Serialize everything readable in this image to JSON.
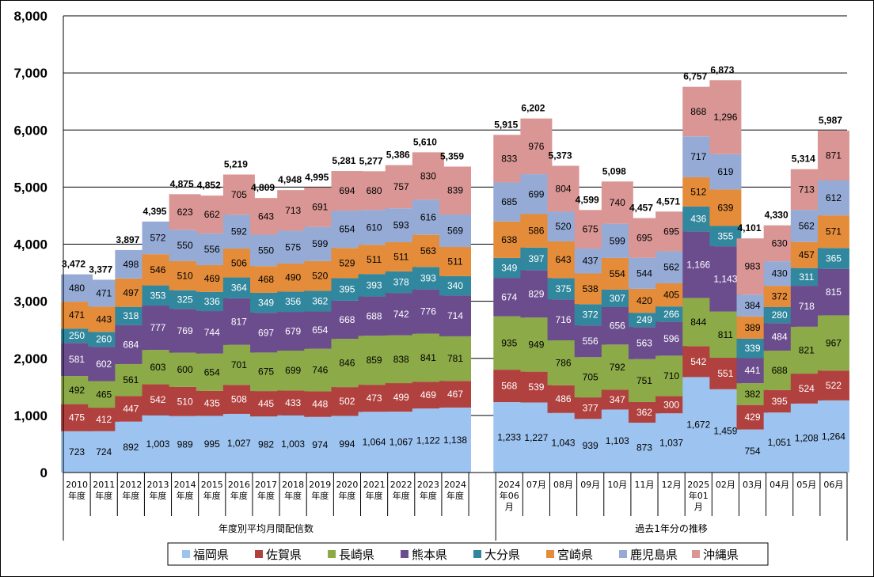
{
  "chart_data": {
    "type": "bar",
    "stacked": true,
    "ylim": [
      0,
      8000
    ],
    "yticks": [
      "0",
      "1,000",
      "2,000",
      "3,000",
      "4,000",
      "5,000",
      "6,000",
      "7,000",
      "8,000"
    ],
    "grid": true,
    "legend_position": "bottom",
    "categories": [
      [
        "2010",
        "年度"
      ],
      [
        "2011",
        "年度"
      ],
      [
        "2012",
        "年度"
      ],
      [
        "2013",
        "年度"
      ],
      [
        "2014",
        "年度"
      ],
      [
        "2015",
        "年度"
      ],
      [
        "2016",
        "年度"
      ],
      [
        "2017",
        "年度"
      ],
      [
        "2018",
        "年度"
      ],
      [
        "2019",
        "年度"
      ],
      [
        "2020",
        "年度"
      ],
      [
        "2021",
        "年度"
      ],
      [
        "2022",
        "年度"
      ],
      [
        "2023",
        "年度"
      ],
      [
        "2024",
        "年度"
      ],
      [
        "2024",
        "年06",
        "月"
      ],
      [
        "07月"
      ],
      [
        "08月"
      ],
      [
        "09月"
      ],
      [
        "10月"
      ],
      [
        "11月"
      ],
      [
        "12月"
      ],
      [
        "2025",
        "年01",
        "月"
      ],
      [
        "02月"
      ],
      [
        "03月"
      ],
      [
        "04月"
      ],
      [
        "05月"
      ],
      [
        "06月"
      ]
    ],
    "groups": [
      {
        "label": "年度別平均月間配信数",
        "count": 15
      },
      {
        "label": "過去1年分の推移",
        "count": 13
      }
    ],
    "series": [
      {
        "name": "福岡県",
        "color": "#9DC3F0",
        "values": [
          723,
          724,
          892,
          1003,
          989,
          995,
          1027,
          982,
          1003,
          974,
          994,
          1064,
          1067,
          1122,
          1138,
          1233,
          1227,
          1043,
          939,
          1103,
          873,
          1037,
          1672,
          1459,
          754,
          1051,
          1208,
          1264
        ]
      },
      {
        "name": "佐賀県",
        "color": "#B0413E",
        "values": [
          475,
          412,
          447,
          542,
          510,
          435,
          508,
          445,
          433,
          448,
          502,
          473,
          499,
          469,
          467,
          568,
          539,
          486,
          377,
          347,
          362,
          300,
          542,
          551,
          429,
          395,
          524,
          522
        ]
      },
      {
        "name": "長崎県",
        "color": "#8CAA47",
        "values": [
          492,
          465,
          561,
          603,
          600,
          654,
          701,
          675,
          699,
          746,
          846,
          859,
          838,
          841,
          781,
          935,
          949,
          786,
          705,
          792,
          751,
          710,
          844,
          811,
          382,
          688,
          821,
          967
        ]
      },
      {
        "name": "熊本県",
        "color": "#6B4D8E",
        "values": [
          581,
          602,
          684,
          777,
          769,
          744,
          817,
          697,
          679,
          654,
          668,
          688,
          742,
          776,
          714,
          674,
          829,
          716,
          556,
          656,
          563,
          596,
          1166,
          1143,
          441,
          484,
          718,
          815
        ]
      },
      {
        "name": "大分県",
        "color": "#31879D",
        "values": [
          250,
          260,
          318,
          353,
          325,
          336,
          364,
          349,
          356,
          362,
          395,
          393,
          378,
          393,
          340,
          349,
          397,
          375,
          372,
          307,
          249,
          266,
          436,
          355,
          339,
          280,
          311,
          365
        ]
      },
      {
        "name": "宮崎県",
        "color": "#E48C3A",
        "values": [
          471,
          443,
          497,
          546,
          510,
          469,
          506,
          468,
          490,
          520,
          529,
          511,
          511,
          563,
          511,
          638,
          586,
          643,
          538,
          554,
          420,
          405,
          512,
          639,
          389,
          372,
          457,
          571
        ]
      },
      {
        "name": "鹿児島県",
        "color": "#95ABD6",
        "values": [
          480,
          471,
          498,
          572,
          550,
          556,
          592,
          550,
          575,
          599,
          654,
          610,
          593,
          616,
          569,
          685,
          699,
          520,
          437,
          599,
          544,
          562,
          717,
          619,
          384,
          430,
          562,
          612
        ]
      },
      {
        "name": "沖縄県",
        "color": "#D99694",
        "values": [
          0,
          0,
          0,
          0,
          623,
          662,
          705,
          643,
          713,
          691,
          694,
          680,
          757,
          830,
          839,
          833,
          976,
          804,
          675,
          740,
          695,
          695,
          868,
          1296,
          983,
          630,
          713,
          871
        ]
      }
    ],
    "totals": [
      "3,472",
      "3,377",
      "3,897",
      "4,395",
      "4,875",
      "4,852",
      "5,219",
      "4,809",
      "4,948",
      "4,995",
      "5,281",
      "5,277",
      "5,386",
      "5,610",
      "5,359",
      "5,915",
      "6,202",
      "5,373",
      "4,599",
      "5,098",
      "4,457",
      "4,571",
      "6,757",
      "6,873",
      "4,101",
      "4,330",
      "5,314",
      "5,987"
    ]
  }
}
